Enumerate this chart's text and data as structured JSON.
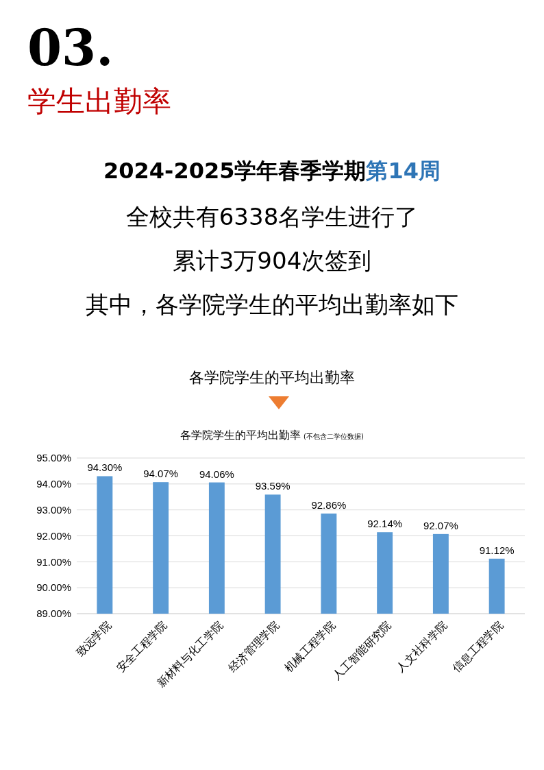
{
  "chart_data": {
    "type": "bar",
    "title": "各学院学生的平均出勤率",
    "subtitle": "(不包含二学位数据)",
    "annotations": [
      "03.",
      "学生出勤率",
      "2024-2025学年春季学期",
      "第14周",
      "全校共有6338名学生进行了",
      "累计3万904次签到",
      "其中，各学院学生的平均出勤率如下",
      "各学院学生的平均出勤率"
    ],
    "categories": [
      "致远学院",
      "安全工程学院",
      "新材料与化工学院",
      "经济管理学院",
      "机械工程学院",
      "人工智能研究院",
      "人文社科学院",
      "信息工程学院"
    ],
    "values": [
      94.3,
      94.07,
      94.06,
      93.59,
      92.86,
      92.14,
      92.07,
      91.12
    ],
    "value_labels": [
      "94.30%",
      "94.07%",
      "94.06%",
      "93.59%",
      "92.86%",
      "92.14%",
      "92.07%",
      "91.12%"
    ],
    "color": "#5b9bd5",
    "ylim": [
      89,
      95
    ],
    "yticks": [
      {
        "value": 89,
        "label": "89.00%"
      },
      {
        "value": 90,
        "label": "90.00%"
      },
      {
        "value": 91,
        "label": "91.00%"
      },
      {
        "value": 92,
        "label": "92.00%"
      },
      {
        "value": 93,
        "label": "93.00%"
      },
      {
        "value": 94,
        "label": "94.00%"
      },
      {
        "value": 95,
        "label": "95.00%"
      }
    ],
    "grid": "y"
  }
}
